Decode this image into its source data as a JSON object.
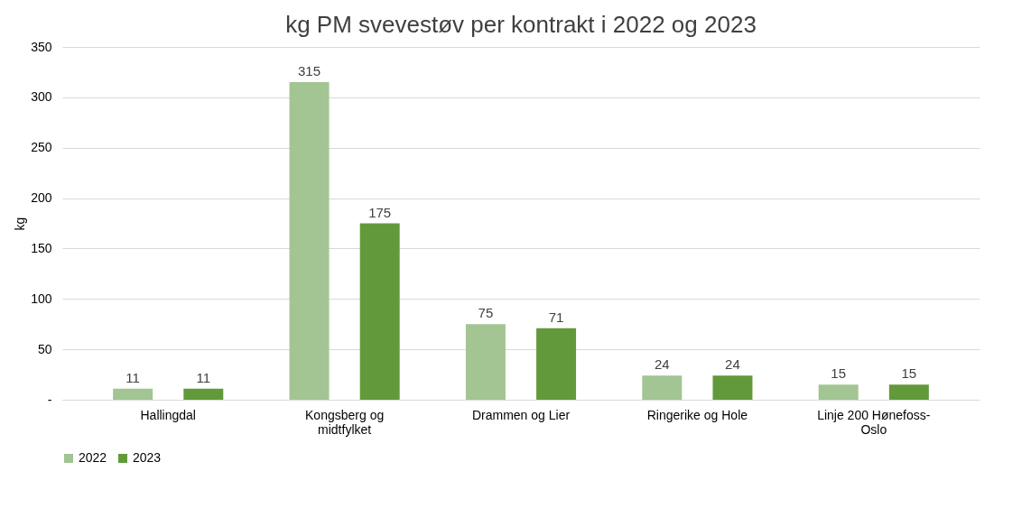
{
  "chart_data": {
    "type": "bar",
    "title": "kg PM svevestøv per kontrakt i 2022 og 2023",
    "ylabel": "kg",
    "categories": [
      "Hallingdal",
      "Kongsberg og midtfylket",
      "Drammen og Lier",
      "Ringerike og Hole",
      "Linje 200 Hønefoss-Oslo"
    ],
    "series": [
      {
        "name": "2022",
        "color": "#a2c593",
        "values": [
          11,
          315,
          75,
          24,
          15
        ]
      },
      {
        "name": "2023",
        "color": "#629a3b",
        "values": [
          11,
          175,
          71,
          24,
          15
        ]
      }
    ],
    "ylim": [
      0,
      350
    ],
    "yticks": [
      {
        "value": 0,
        "label": "-"
      },
      50,
      100,
      150,
      200,
      250,
      300,
      350
    ],
    "grid": "y",
    "legend": "bottom",
    "data_labels": true
  }
}
